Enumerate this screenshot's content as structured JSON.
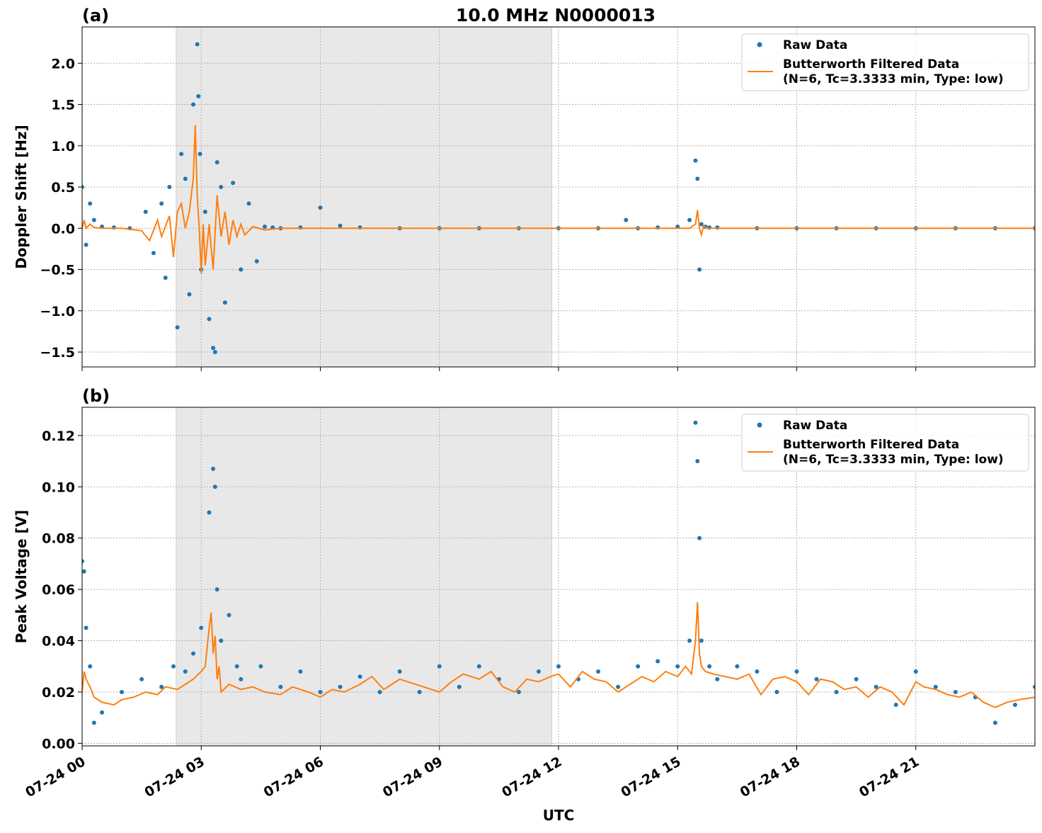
{
  "figure": {
    "title": "10.0 MHz N0000013",
    "xlabel": "UTC"
  },
  "chart_data": [
    {
      "type": "scatter",
      "panel": "(a)",
      "title": "10.0 MHz N0000013",
      "xlabel": "",
      "ylabel": "Doppler Shift [Hz]",
      "x_unit": "hours since 07-24 00 UTC",
      "xlim": [
        0,
        24
      ],
      "ylim": [
        -1.68,
        2.44
      ],
      "yticks": [
        -1.5,
        -1.0,
        -0.5,
        0.0,
        0.5,
        1.0,
        1.5,
        2.0
      ],
      "ytick_labels": [
        "−1.5",
        "−1.0",
        "−0.5",
        "0.0",
        "0.5",
        "1.0",
        "1.5",
        "2.0"
      ],
      "grid": true,
      "legend_position": "top-right",
      "shaded_span": [
        2.37,
        11.83
      ],
      "series": [
        {
          "name": "Raw Data",
          "kind": "points",
          "color": "#1f77b4",
          "x": [
            0.0,
            0.1,
            0.2,
            0.3,
            0.5,
            0.8,
            1.2,
            1.6,
            1.8,
            2.0,
            2.1,
            2.2,
            2.4,
            2.5,
            2.6,
            2.7,
            2.8,
            2.9,
            2.93,
            2.97,
            3.0,
            3.1,
            3.2,
            3.3,
            3.35,
            3.4,
            3.5,
            3.6,
            3.8,
            4.0,
            4.2,
            4.4,
            4.6,
            4.8,
            5.0,
            5.5,
            6.0,
            6.5,
            7.0,
            8.0,
            9.0,
            10.0,
            11.0,
            12.0,
            13.0,
            13.7,
            14.0,
            14.5,
            15.0,
            15.3,
            15.45,
            15.5,
            15.55,
            15.6,
            15.7,
            15.8,
            16.0,
            17.0,
            18.0,
            19.0,
            20.0,
            21.0,
            22.0,
            23.0,
            24.0
          ],
          "y": [
            0.5,
            -0.2,
            0.3,
            0.1,
            0.02,
            0.01,
            0.0,
            0.2,
            -0.3,
            0.3,
            -0.6,
            0.5,
            -1.2,
            0.9,
            0.6,
            -0.8,
            1.5,
            2.23,
            1.6,
            0.9,
            -0.5,
            0.2,
            -1.1,
            -1.45,
            -1.5,
            0.8,
            0.5,
            -0.9,
            0.55,
            -0.5,
            0.3,
            -0.4,
            0.02,
            0.01,
            0.0,
            0.01,
            0.25,
            0.03,
            0.01,
            0.0,
            0.0,
            0.0,
            0.0,
            0.0,
            0.0,
            0.1,
            0.0,
            0.01,
            0.02,
            0.1,
            0.82,
            0.6,
            -0.5,
            0.05,
            0.02,
            0.01,
            0.01,
            0.0,
            0.0,
            0.0,
            0.0,
            0.0,
            0.0,
            0.0,
            0.0
          ]
        },
        {
          "name": "Butterworth Filtered Data\n(N=6, Tc=3.3333 min, Type: low)",
          "kind": "line",
          "color": "#ff7f0e",
          "x": [
            0.0,
            0.05,
            0.1,
            0.2,
            0.3,
            0.5,
            1.0,
            1.5,
            1.7,
            1.9,
            2.0,
            2.2,
            2.3,
            2.4,
            2.5,
            2.6,
            2.7,
            2.8,
            2.85,
            2.9,
            2.95,
            3.0,
            3.05,
            3.1,
            3.2,
            3.3,
            3.4,
            3.5,
            3.6,
            3.7,
            3.8,
            3.9,
            4.0,
            4.1,
            4.3,
            4.6,
            5.0,
            6.0,
            8.0,
            10.0,
            12.0,
            14.0,
            15.0,
            15.3,
            15.45,
            15.5,
            15.55,
            15.6,
            15.65,
            15.75,
            16.0,
            18.0,
            20.0,
            22.0,
            24.0
          ],
          "y": [
            0.0,
            0.1,
            0.0,
            0.05,
            0.01,
            0.0,
            0.0,
            -0.03,
            -0.15,
            0.1,
            -0.1,
            0.15,
            -0.35,
            0.2,
            0.3,
            0.0,
            0.2,
            0.6,
            1.25,
            0.4,
            0.0,
            -0.55,
            0.05,
            -0.45,
            0.05,
            -0.5,
            0.4,
            -0.1,
            0.2,
            -0.2,
            0.1,
            -0.1,
            0.05,
            -0.08,
            0.02,
            -0.02,
            0.0,
            0.0,
            0.0,
            0.0,
            0.0,
            0.0,
            0.0,
            0.0,
            0.05,
            0.22,
            0.0,
            -0.08,
            0.03,
            0.0,
            0.0,
            0.0,
            0.0,
            0.0,
            0.0
          ]
        }
      ]
    },
    {
      "type": "scatter",
      "panel": "(b)",
      "title": "",
      "xlabel": "UTC",
      "ylabel": "Peak Voltage [V]",
      "x_unit": "hours since 07-24 00 UTC",
      "xlim": [
        0,
        24
      ],
      "ylim": [
        -0.001,
        0.131
      ],
      "yticks": [
        0.0,
        0.02,
        0.04,
        0.06,
        0.08,
        0.1,
        0.12
      ],
      "ytick_labels": [
        "0.00",
        "0.02",
        "0.04",
        "0.06",
        "0.08",
        "0.10",
        "0.12"
      ],
      "xticks": [
        0,
        3,
        6,
        9,
        12,
        15,
        18,
        21
      ],
      "xtick_labels": [
        "07-24 00",
        "07-24 03",
        "07-24 06",
        "07-24 09",
        "07-24 12",
        "07-24 15",
        "07-24 18",
        "07-24 21"
      ],
      "grid": true,
      "legend_position": "top-right",
      "shaded_span": [
        2.37,
        11.83
      ],
      "series": [
        {
          "name": "Raw Data",
          "kind": "points",
          "color": "#1f77b4",
          "x": [
            0.0,
            0.05,
            0.1,
            0.2,
            0.3,
            0.5,
            1.0,
            1.5,
            2.0,
            2.3,
            2.6,
            2.8,
            3.0,
            3.2,
            3.3,
            3.35,
            3.4,
            3.5,
            3.7,
            3.9,
            4.0,
            4.5,
            5.0,
            5.5,
            6.0,
            6.5,
            7.0,
            7.5,
            8.0,
            8.5,
            9.0,
            9.5,
            10.0,
            10.5,
            11.0,
            11.5,
            12.0,
            12.5,
            13.0,
            13.5,
            14.0,
            14.5,
            15.0,
            15.3,
            15.45,
            15.5,
            15.55,
            15.6,
            15.8,
            16.0,
            16.5,
            17.0,
            17.5,
            18.0,
            18.5,
            19.0,
            19.5,
            20.0,
            20.5,
            21.0,
            21.5,
            22.0,
            22.5,
            23.0,
            23.5,
            24.0
          ],
          "y": [
            0.071,
            0.067,
            0.045,
            0.03,
            0.008,
            0.012,
            0.02,
            0.025,
            0.022,
            0.03,
            0.028,
            0.035,
            0.045,
            0.09,
            0.107,
            0.1,
            0.06,
            0.04,
            0.05,
            0.03,
            0.025,
            0.03,
            0.022,
            0.028,
            0.02,
            0.022,
            0.026,
            0.02,
            0.028,
            0.02,
            0.03,
            0.022,
            0.03,
            0.025,
            0.02,
            0.028,
            0.03,
            0.025,
            0.028,
            0.022,
            0.03,
            0.032,
            0.03,
            0.04,
            0.125,
            0.11,
            0.08,
            0.04,
            0.03,
            0.025,
            0.03,
            0.028,
            0.02,
            0.028,
            0.025,
            0.02,
            0.025,
            0.022,
            0.015,
            0.028,
            0.022,
            0.02,
            0.018,
            0.008,
            0.015,
            0.022
          ]
        },
        {
          "name": "Butterworth Filtered Data\n(N=6, Tc=3.3333 min, Type: low)",
          "kind": "line",
          "color": "#ff7f0e",
          "x": [
            0.0,
            0.05,
            0.1,
            0.2,
            0.3,
            0.5,
            0.8,
            1.0,
            1.3,
            1.6,
            1.9,
            2.1,
            2.4,
            2.6,
            2.8,
            3.0,
            3.1,
            3.2,
            3.25,
            3.3,
            3.35,
            3.4,
            3.45,
            3.5,
            3.7,
            4.0,
            4.3,
            4.6,
            5.0,
            5.3,
            5.7,
            6.0,
            6.3,
            6.6,
            7.0,
            7.3,
            7.6,
            8.0,
            8.4,
            8.8,
            9.0,
            9.3,
            9.6,
            10.0,
            10.3,
            10.6,
            10.9,
            11.2,
            11.5,
            11.8,
            12.0,
            12.3,
            12.6,
            12.9,
            13.2,
            13.5,
            13.8,
            14.1,
            14.4,
            14.7,
            15.0,
            15.2,
            15.35,
            15.45,
            15.5,
            15.55,
            15.6,
            15.7,
            15.9,
            16.2,
            16.5,
            16.8,
            17.1,
            17.4,
            17.7,
            18.0,
            18.3,
            18.6,
            18.9,
            19.2,
            19.5,
            19.8,
            20.1,
            20.4,
            20.7,
            21.0,
            21.2,
            21.5,
            21.8,
            22.1,
            22.4,
            22.7,
            23.0,
            23.3,
            23.6,
            24.0
          ],
          "y": [
            0.02,
            0.028,
            0.025,
            0.022,
            0.018,
            0.016,
            0.015,
            0.017,
            0.018,
            0.02,
            0.019,
            0.022,
            0.021,
            0.023,
            0.025,
            0.028,
            0.03,
            0.045,
            0.051,
            0.035,
            0.042,
            0.025,
            0.03,
            0.02,
            0.023,
            0.021,
            0.022,
            0.02,
            0.019,
            0.022,
            0.02,
            0.018,
            0.021,
            0.02,
            0.023,
            0.026,
            0.021,
            0.025,
            0.023,
            0.021,
            0.02,
            0.024,
            0.027,
            0.025,
            0.028,
            0.022,
            0.02,
            0.025,
            0.024,
            0.026,
            0.027,
            0.022,
            0.028,
            0.025,
            0.024,
            0.02,
            0.023,
            0.026,
            0.024,
            0.028,
            0.026,
            0.03,
            0.027,
            0.04,
            0.055,
            0.035,
            0.03,
            0.028,
            0.027,
            0.026,
            0.025,
            0.027,
            0.019,
            0.025,
            0.026,
            0.024,
            0.019,
            0.025,
            0.024,
            0.021,
            0.022,
            0.018,
            0.022,
            0.02,
            0.015,
            0.024,
            0.022,
            0.021,
            0.019,
            0.018,
            0.02,
            0.016,
            0.014,
            0.016,
            0.017,
            0.018
          ]
        }
      ]
    }
  ]
}
